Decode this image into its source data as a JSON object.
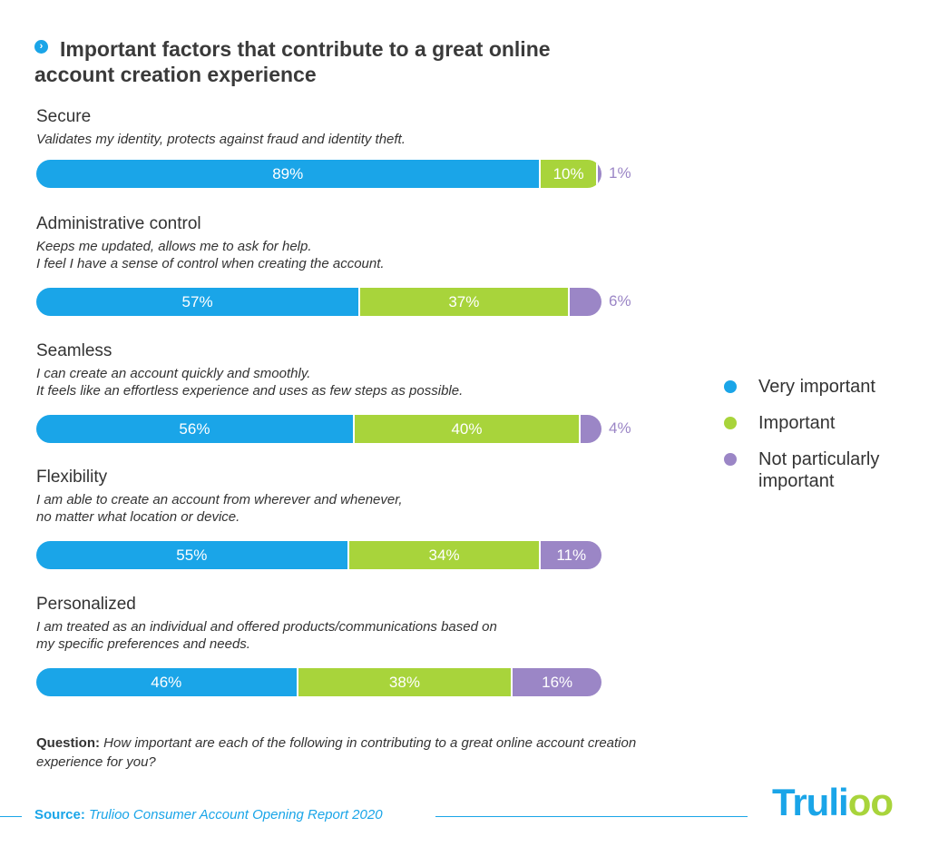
{
  "title": "Important factors that contribute to a great online account creation experience",
  "title_icon": "chevron-right-icon",
  "colors": {
    "very_important": "#1aa5e8",
    "important": "#a8d43b",
    "not_particularly_important": "#9b86c6"
  },
  "legend": [
    {
      "label": "Very important",
      "color": "#1aa5e8"
    },
    {
      "label": "Important",
      "color": "#a8d43b"
    },
    {
      "label": "Not particularly important",
      "color": "#9b86c6"
    }
  ],
  "chart_data": {
    "type": "bar",
    "orientation": "horizontal",
    "stacked": true,
    "categories": [
      "Secure",
      "Administrative control",
      "Seamless",
      "Flexibility",
      "Personalized"
    ],
    "descriptions": [
      [
        "Validates my identity, protects against fraud and identity theft."
      ],
      [
        "Keeps me updated, allows me to ask for help.",
        "I feel I have a sense of control when creating the account."
      ],
      [
        "I can create an account quickly and smoothly.",
        "It feels like an effortless experience and uses as few steps as possible."
      ],
      [
        "I am able to create an account from wherever and whenever,",
        "no matter what location or device."
      ],
      [
        "I am treated as an individual and offered products/communications based on",
        "my specific preferences and needs."
      ]
    ],
    "series": [
      {
        "name": "Very important",
        "values": [
          89,
          57,
          56,
          55,
          46
        ],
        "labels": [
          "89%",
          "57%",
          "56%",
          "55%",
          "46%"
        ]
      },
      {
        "name": "Important",
        "values": [
          10,
          37,
          40,
          34,
          38
        ],
        "labels": [
          "10%",
          "37%",
          "40%",
          "34%",
          "38%"
        ]
      },
      {
        "name": "Not particularly important",
        "values": [
          1,
          6,
          4,
          11,
          16
        ],
        "labels": [
          "1%",
          "6%",
          "4%",
          "11%",
          "16%"
        ]
      }
    ],
    "xlim": [
      0,
      100
    ],
    "legend_position": "right",
    "grid": false
  },
  "question": {
    "label": "Question:",
    "text": "How important are each of the following in contributing to a great online account creation experience for you?"
  },
  "source": {
    "label": "Source:",
    "text": "Trulioo Consumer Account Opening Report 2020"
  },
  "logo": {
    "main": "Truli",
    "accent": "oo"
  }
}
